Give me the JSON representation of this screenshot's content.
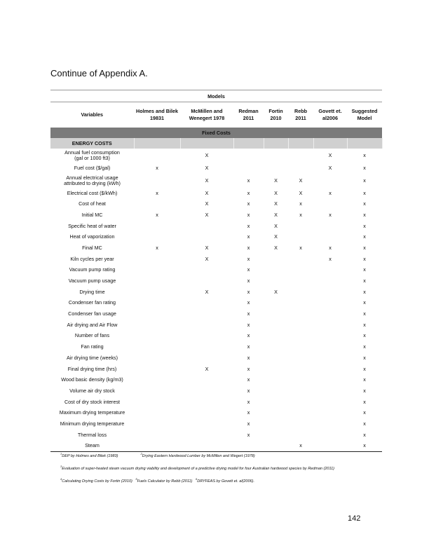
{
  "title": "Continue of Appendix A.",
  "models_label": "Models",
  "columns": [
    "Variables",
    "Holmes and Bilek 19831",
    "McMillen and Wenegert 1978",
    "Redman 2011",
    "Fortin 2010",
    "Rebb 2011",
    "Govett et. al2006",
    "Suggested Model"
  ],
  "fixed_costs_label": "Fixed Costs",
  "section_label": "ENERGY COSTS",
  "rows": [
    {
      "v": "Annual fuel consumption (gal or 1000 ft3)",
      "c": [
        "",
        "X",
        "",
        "",
        "",
        "X",
        "x"
      ]
    },
    {
      "v": "Fuel cost ($/gal)",
      "c": [
        "x",
        "X",
        "",
        "",
        "",
        "X",
        "x"
      ]
    },
    {
      "v": "Annual electrical usage attributed to drying (kWh)",
      "c": [
        "",
        "X",
        "x",
        "X",
        "X",
        "",
        "x"
      ]
    },
    {
      "v": "Electrical cost ($/kWh)",
      "c": [
        "x",
        "X",
        "x",
        "X",
        "X",
        "x",
        "x"
      ]
    },
    {
      "v": "Cost of heat",
      "c": [
        "",
        "X",
        "x",
        "X",
        "x",
        "",
        "x"
      ]
    },
    {
      "v": "Initial MC",
      "c": [
        "x",
        "X",
        "x",
        "X",
        "x",
        "x",
        "x"
      ]
    },
    {
      "v": "Specific heat of water",
      "c": [
        "",
        "",
        "x",
        "X",
        "",
        "",
        "x"
      ]
    },
    {
      "v": "Heat of vaporization",
      "c": [
        "",
        "",
        "x",
        "X",
        "",
        "",
        "x"
      ]
    },
    {
      "v": "Final MC",
      "c": [
        "x",
        "X",
        "x",
        "X",
        "x",
        "x",
        "x"
      ]
    },
    {
      "v": "Kiln cycles per year",
      "c": [
        "",
        "X",
        "x",
        "",
        "",
        "x",
        "x"
      ]
    },
    {
      "v": "Vacuum pump rating",
      "c": [
        "",
        "",
        "x",
        "",
        "",
        "",
        "x"
      ]
    },
    {
      "v": "Vacuum pump usage",
      "c": [
        "",
        "",
        "x",
        "",
        "",
        "",
        "x"
      ]
    },
    {
      "v": "Drying time",
      "c": [
        "",
        "X",
        "x",
        "X",
        "",
        "",
        "x"
      ]
    },
    {
      "v": "Condenser fan rating",
      "c": [
        "",
        "",
        "x",
        "",
        "",
        "",
        "x"
      ]
    },
    {
      "v": "Condenser fan usage",
      "c": [
        "",
        "",
        "x",
        "",
        "",
        "",
        "x"
      ]
    },
    {
      "v": "Air drying and Air Flow",
      "c": [
        "",
        "",
        "x",
        "",
        "",
        "",
        "x"
      ]
    },
    {
      "v": "Number of fans",
      "c": [
        "",
        "",
        "x",
        "",
        "",
        "",
        "x"
      ]
    },
    {
      "v": "Fan rating",
      "c": [
        "",
        "",
        "x",
        "",
        "",
        "",
        "x"
      ]
    },
    {
      "v": "Air drying time (weeks)",
      "c": [
        "",
        "",
        "x",
        "",
        "",
        "",
        "x"
      ]
    },
    {
      "v": "Final drying time (hrs)",
      "c": [
        "",
        "X",
        "x",
        "",
        "",
        "",
        "x"
      ]
    },
    {
      "v": "Wood basic density (kg/m3)",
      "c": [
        "",
        "",
        "x",
        "",
        "",
        "",
        "x"
      ]
    },
    {
      "v": "Volume air dry stock",
      "c": [
        "",
        "",
        "x",
        "",
        "",
        "",
        "x"
      ]
    },
    {
      "v": "Cost of dry stock interest",
      "c": [
        "",
        "",
        "x",
        "",
        "",
        "",
        "x"
      ]
    },
    {
      "v": "Maximum drying temperature",
      "c": [
        "",
        "",
        "x",
        "",
        "",
        "",
        "x"
      ]
    },
    {
      "v": "Minimum drying temperature",
      "c": [
        "",
        "",
        "x",
        "",
        "",
        "",
        "x"
      ]
    },
    {
      "v": "Thermal loss",
      "c": [
        "",
        "",
        "x",
        "",
        "",
        "",
        "x"
      ]
    },
    {
      "v": "Steam",
      "c": [
        "",
        "",
        "",
        "",
        "x",
        "",
        "x"
      ]
    }
  ],
  "footnotes": [
    {
      "n": "1",
      "t": "DEP by Holmes and Bilek (1983)"
    },
    {
      "n": "2",
      "t": "Drying Eastern Hardwood Lumber by McMillen and Wegert (1978)"
    },
    {
      "n": "3",
      "t": "Evaluation of super-heated steam vacuum drying viability and development of a predictive drying model for four Australian hardwood species by Redman (2011)"
    },
    {
      "n": "4",
      "t": "Calculating Drying Costs by Fortin (2010)"
    },
    {
      "n": "5",
      "t": "Fuels Calculator by Rebb (2011)"
    },
    {
      "n": "6",
      "t": "DRYFEAS by Govett et. al(2006)."
    }
  ],
  "page_number": "142"
}
